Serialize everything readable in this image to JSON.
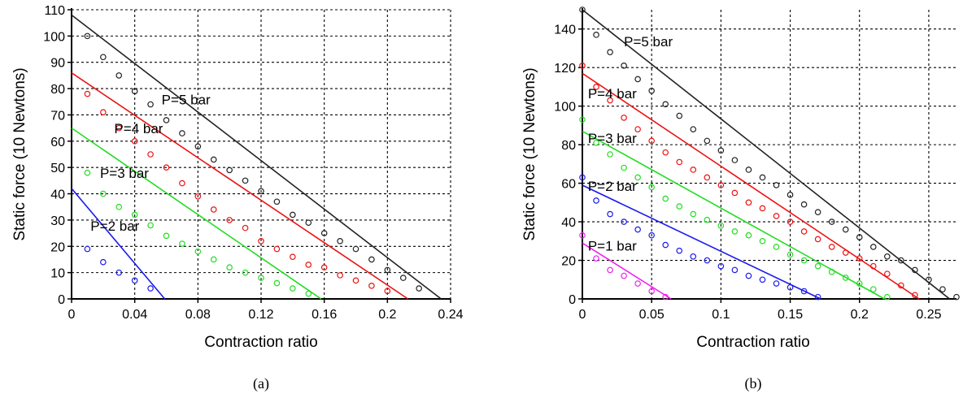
{
  "chart_data": [
    {
      "type": "scatter",
      "panel_label": "(a)",
      "xlabel": "Contraction ratio",
      "ylabel": "Static force (10 Newtons)",
      "xlim": [
        0,
        0.24
      ],
      "ylim": [
        0,
        110
      ],
      "xticks": [
        0,
        0.04,
        0.08,
        0.12,
        0.16,
        0.2,
        0.24
      ],
      "xtick_labels": [
        "0",
        "0.04",
        "0.08",
        "0.12",
        "0.16",
        "0.2",
        "0.24"
      ],
      "yticks": [
        0,
        10,
        20,
        30,
        40,
        50,
        60,
        70,
        80,
        90,
        100,
        110
      ],
      "ytick_labels": [
        "0",
        "10",
        "20",
        "30",
        "40",
        "50",
        "60",
        "70",
        "80",
        "90",
        "100",
        "110"
      ],
      "grid": true,
      "annotations": [
        {
          "text": "P=5 bar",
          "x": 0.057,
          "y": 74,
          "series": 0
        },
        {
          "text": "P=4 bar",
          "x": 0.027,
          "y": 63,
          "series": 1
        },
        {
          "text": "P=3 bar",
          "x": 0.018,
          "y": 46,
          "series": 2
        },
        {
          "text": "P=2 bar",
          "x": 0.012,
          "y": 26,
          "series": 3
        }
      ],
      "series": [
        {
          "color": "#222222",
          "line": {
            "x": [
              0,
              0.234
            ],
            "y": [
              108,
              0
            ]
          },
          "points": {
            "x": [
              0.01,
              0.02,
              0.03,
              0.04,
              0.05,
              0.06,
              0.07,
              0.08,
              0.09,
              0.1,
              0.11,
              0.12,
              0.13,
              0.14,
              0.15,
              0.16,
              0.17,
              0.18,
              0.19,
              0.2,
              0.21,
              0.22
            ],
            "y": [
              100,
              92,
              85,
              79,
              74,
              68,
              63,
              58,
              53,
              49,
              45,
              41,
              37,
              32,
              29,
              25,
              22,
              19,
              15,
              11,
              8,
              4
            ]
          }
        },
        {
          "color": "#ee1111",
          "line": {
            "x": [
              0,
              0.213
            ],
            "y": [
              86,
              0
            ]
          },
          "points": {
            "x": [
              0.01,
              0.02,
              0.03,
              0.04,
              0.05,
              0.06,
              0.07,
              0.08,
              0.09,
              0.1,
              0.11,
              0.12,
              0.13,
              0.14,
              0.15,
              0.16,
              0.17,
              0.18,
              0.19,
              0.2
            ],
            "y": [
              78,
              71,
              65,
              60,
              55,
              50,
              44,
              39,
              34,
              30,
              27,
              22,
              19,
              16,
              13,
              12,
              9,
              7,
              5,
              3
            ]
          }
        },
        {
          "color": "#22dd22",
          "line": {
            "x": [
              0,
              0.158
            ],
            "y": [
              65,
              0
            ]
          },
          "points": {
            "x": [
              0.01,
              0.02,
              0.03,
              0.04,
              0.05,
              0.06,
              0.07,
              0.08,
              0.09,
              0.1,
              0.11,
              0.12,
              0.13,
              0.14,
              0.15
            ],
            "y": [
              48,
              40,
              35,
              32,
              28,
              24,
              21,
              18,
              15,
              12,
              10,
              8,
              6,
              4,
              2
            ]
          }
        },
        {
          "color": "#1a1aee",
          "line": {
            "x": [
              0,
              0.059
            ],
            "y": [
              42,
              0
            ]
          },
          "points": {
            "x": [
              0.01,
              0.02,
              0.03,
              0.04,
              0.05
            ],
            "y": [
              19,
              14,
              10,
              7,
              4
            ]
          }
        }
      ]
    },
    {
      "type": "scatter",
      "panel_label": "(b)",
      "xlabel": "Contraction ratio",
      "ylabel": "Static force (10 Newtons)",
      "xlim": [
        0,
        0.27
      ],
      "ylim": [
        0,
        150
      ],
      "xticks": [
        0,
        0.05,
        0.1,
        0.15,
        0.2,
        0.25
      ],
      "xtick_labels": [
        "0",
        "0.05",
        "0.1",
        "0.15",
        "0.2",
        "0.25"
      ],
      "yticks": [
        0,
        20,
        40,
        60,
        80,
        100,
        120,
        140
      ],
      "ytick_labels": [
        "0",
        "20",
        "40",
        "60",
        "80",
        "100",
        "120",
        "140"
      ],
      "grid": true,
      "annotations": [
        {
          "text": "P=5 bar",
          "x": 0.03,
          "y": 131,
          "series": 0
        },
        {
          "text": "P=4 bar",
          "x": 0.004,
          "y": 104,
          "series": 1
        },
        {
          "text": "P=3 bar",
          "x": 0.004,
          "y": 81,
          "series": 2
        },
        {
          "text": "P=2 bar",
          "x": 0.004,
          "y": 56,
          "series": 3
        },
        {
          "text": "P=1 bar",
          "x": 0.004,
          "y": 25,
          "series": 4
        }
      ],
      "series": [
        {
          "color": "#222222",
          "line": {
            "x": [
              0,
              0.265
            ],
            "y": [
              150,
              0
            ]
          },
          "points": {
            "x": [
              0,
              0.01,
              0.02,
              0.03,
              0.04,
              0.05,
              0.06,
              0.07,
              0.08,
              0.09,
              0.1,
              0.11,
              0.12,
              0.13,
              0.14,
              0.15,
              0.16,
              0.17,
              0.18,
              0.19,
              0.2,
              0.21,
              0.22,
              0.23,
              0.24,
              0.25,
              0.26,
              0.27
            ],
            "y": [
              150,
              137,
              128,
              121,
              114,
              108,
              101,
              95,
              88,
              82,
              77,
              72,
              67,
              63,
              59,
              54,
              49,
              45,
              40,
              36,
              32,
              27,
              22,
              20,
              15,
              10,
              5,
              1
            ]
          }
        },
        {
          "color": "#ee1111",
          "line": {
            "x": [
              0,
              0.243
            ],
            "y": [
              117,
              0
            ]
          },
          "points": {
            "x": [
              0,
              0.01,
              0.02,
              0.03,
              0.04,
              0.05,
              0.06,
              0.07,
              0.08,
              0.09,
              0.1,
              0.11,
              0.12,
              0.13,
              0.14,
              0.15,
              0.16,
              0.17,
              0.18,
              0.19,
              0.2,
              0.21,
              0.22,
              0.23,
              0.24
            ],
            "y": [
              121,
              110,
              103,
              94,
              88,
              82,
              76,
              71,
              67,
              63,
              59,
              55,
              50,
              47,
              43,
              40,
              35,
              31,
              27,
              24,
              21,
              17,
              13,
              7,
              2
            ]
          }
        },
        {
          "color": "#22dd22",
          "line": {
            "x": [
              0,
              0.218
            ],
            "y": [
              87,
              0
            ]
          },
          "points": {
            "x": [
              0,
              0.01,
              0.02,
              0.03,
              0.04,
              0.05,
              0.06,
              0.07,
              0.08,
              0.09,
              0.1,
              0.11,
              0.12,
              0.13,
              0.14,
              0.15,
              0.16,
              0.17,
              0.18,
              0.19,
              0.2,
              0.21,
              0.22
            ],
            "y": [
              93,
              81,
              75,
              68,
              63,
              58,
              52,
              48,
              44,
              41,
              38,
              35,
              33,
              30,
              27,
              23,
              20,
              17,
              14,
              11,
              8,
              5,
              1
            ]
          }
        },
        {
          "color": "#1a1aee",
          "line": {
            "x": [
              0,
              0.172
            ],
            "y": [
              59,
              0
            ]
          },
          "points": {
            "x": [
              0,
              0.01,
              0.02,
              0.03,
              0.04,
              0.05,
              0.06,
              0.07,
              0.08,
              0.09,
              0.1,
              0.11,
              0.12,
              0.13,
              0.14,
              0.15,
              0.16,
              0.17
            ],
            "y": [
              63,
              51,
              44,
              40,
              36,
              33,
              28,
              25,
              22,
              20,
              17,
              15,
              12,
              10,
              8,
              6,
              4,
              1
            ]
          }
        },
        {
          "color": "#ee22ee",
          "line": {
            "x": [
              0,
              0.064
            ],
            "y": [
              29,
              0
            ]
          },
          "points": {
            "x": [
              0,
              0.01,
              0.02,
              0.03,
              0.04,
              0.05,
              0.06
            ],
            "y": [
              33,
              21,
              15,
              12,
              8,
              4,
              1
            ]
          }
        }
      ]
    }
  ]
}
